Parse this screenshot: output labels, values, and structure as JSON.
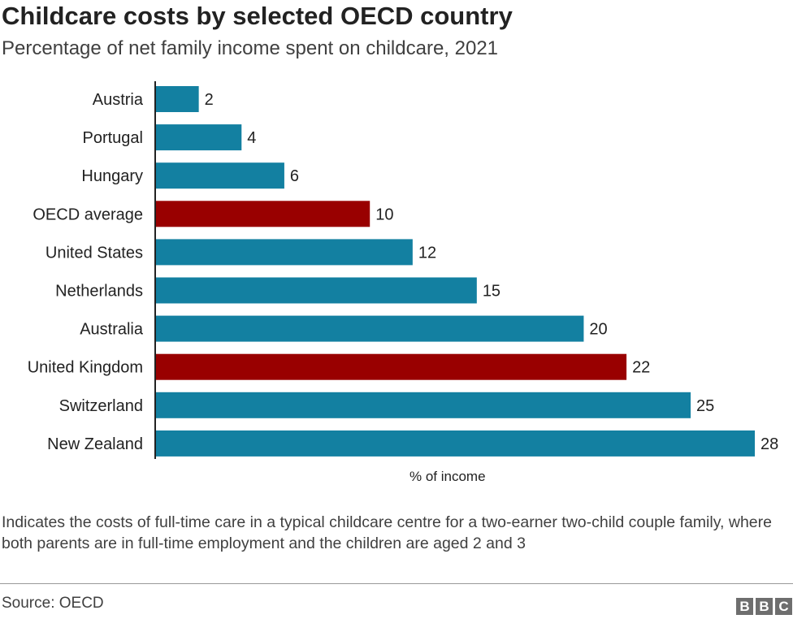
{
  "chart_data": {
    "type": "bar",
    "orientation": "horizontal",
    "title": "Childcare costs by selected OECD country",
    "subtitle": "Percentage of net family income spent on childcare, 2021",
    "xlabel": "% of income",
    "ylabel": "",
    "categories": [
      "Austria",
      "Portugal",
      "Hungary",
      "OECD average",
      "United States",
      "Netherlands",
      "Australia",
      "United Kingdom",
      "Switzerland",
      "New Zealand"
    ],
    "values": [
      2,
      4,
      6,
      10,
      12,
      15,
      20,
      22,
      25,
      28
    ],
    "highlighted": [
      "OECD average",
      "United Kingdom"
    ],
    "colors": {
      "default": "#1380a1",
      "highlight": "#990000"
    },
    "xlim": [
      0,
      28
    ],
    "grid": false,
    "data_labels": true
  },
  "footer": {
    "note": "Indicates the costs of full-time care in a typical childcare centre for a two-earner two-child couple family, where both parents are in full-time employment and the children are aged 2 and 3",
    "source": "Source: OECD",
    "logo": [
      "B",
      "B",
      "C"
    ]
  }
}
